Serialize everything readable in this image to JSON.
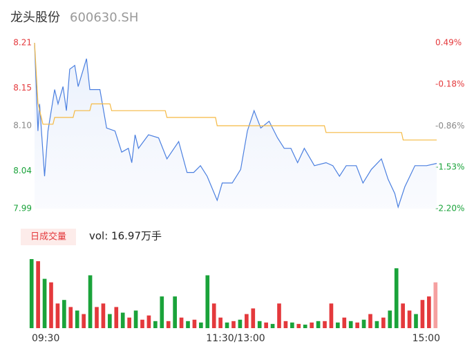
{
  "header": {
    "name": "龙头股份",
    "code": "600630.SH"
  },
  "chart_data": [
    {
      "type": "line",
      "xlim": [
        0,
        240
      ],
      "xticks": [
        {
          "value": 0,
          "label": "09:30"
        },
        {
          "value": 120,
          "label": "11:30/13:00"
        },
        {
          "value": 240,
          "label": "15:00"
        }
      ],
      "ylim": [
        7.99,
        8.21
      ],
      "yticks": [
        8.21,
        8.15,
        {
          "value": 8.1,
          "label": "8.10"
        },
        8.04,
        7.99
      ],
      "ytick_colors": [
        "#e4393c",
        "#e4393c",
        "#888888",
        "#1aa33a",
        "#1aa33a"
      ],
      "y2lim": [
        -2.2,
        0.49
      ],
      "y2ticks": [
        {
          "value": 0.49,
          "label": "0.49%"
        },
        {
          "value": -0.18,
          "label": "-0.18%"
        },
        {
          "value": -0.86,
          "label": "-0.86%"
        },
        {
          "value": -1.53,
          "label": "-1.53%"
        },
        {
          "value": -2.2,
          "label": "-2.20%"
        }
      ],
      "series": [
        {
          "color": "#4a7fe0",
          "x": [
            0,
            2,
            3,
            6,
            8,
            12,
            14,
            17,
            19,
            21,
            24,
            26,
            31,
            33,
            39,
            43,
            48,
            52,
            56,
            58,
            60,
            62,
            68,
            74,
            79,
            86,
            91,
            95,
            99,
            103,
            109,
            112,
            118,
            123,
            127,
            131,
            135,
            140,
            145,
            149,
            153,
            157,
            161,
            167,
            174,
            178,
            182,
            186,
            192,
            196,
            201,
            207,
            211,
            215,
            217,
            221,
            227,
            234,
            240
          ],
          "values": [
            8.21,
            8.093,
            8.129,
            8.033,
            8.093,
            8.148,
            8.129,
            8.152,
            8.12,
            8.175,
            8.18,
            8.152,
            8.189,
            8.148,
            8.148,
            8.097,
            8.093,
            8.065,
            8.07,
            8.051,
            8.088,
            8.07,
            8.088,
            8.084,
            8.056,
            8.079,
            8.038,
            8.038,
            8.047,
            8.033,
            8.001,
            8.024,
            8.024,
            8.042,
            8.093,
            8.12,
            8.097,
            8.106,
            8.084,
            8.07,
            8.07,
            8.051,
            8.07,
            8.047,
            8.051,
            8.047,
            8.033,
            8.047,
            8.047,
            8.024,
            8.042,
            8.056,
            8.029,
            8.01,
            7.992,
            8.019,
            8.047,
            8.047,
            8.05
          ]
        },
        {
          "color": "#f5b942",
          "x": [
            0,
            2,
            5,
            11,
            12,
            23,
            24,
            33,
            34,
            45,
            46,
            78,
            79,
            108,
            109,
            173,
            174,
            219,
            220,
            240
          ],
          "values": [
            8.21,
            8.13,
            8.102,
            8.102,
            8.111,
            8.111,
            8.12,
            8.12,
            8.129,
            8.129,
            8.12,
            8.12,
            8.111,
            8.111,
            8.1,
            8.1,
            8.091,
            8.091,
            8.081,
            8.081
          ]
        }
      ]
    },
    {
      "type": "bar",
      "legend": "日成交量",
      "note": "vol: 16.97万手",
      "values": [
        98,
        95,
        70,
        65,
        35,
        40,
        30,
        25,
        20,
        75,
        30,
        35,
        20,
        30,
        22,
        15,
        25,
        12,
        18,
        10,
        45,
        10,
        45,
        15,
        10,
        12,
        8,
        75,
        35,
        15,
        8,
        10,
        12,
        20,
        28,
        10,
        8,
        6,
        35,
        10,
        8,
        6,
        5,
        8,
        10,
        10,
        35,
        8,
        15,
        10,
        8,
        12,
        20,
        10,
        15,
        25,
        85,
        35,
        25,
        20,
        40,
        45,
        65
      ],
      "colors": [
        "#1aa33a",
        "#e4393c",
        "#1aa33a",
        "#e4393c",
        "#e4393c",
        "#1aa33a",
        "#e4393c",
        "#1aa33a",
        "#e4393c",
        "#1aa33a",
        "#e4393c",
        "#e4393c",
        "#1aa33a",
        "#e4393c",
        "#1aa33a",
        "#e4393c",
        "#1aa33a",
        "#e4393c",
        "#e4393c",
        "#1aa33a",
        "#1aa33a",
        "#e4393c",
        "#1aa33a",
        "#e4393c",
        "#1aa33a",
        "#e4393c",
        "#1aa33a",
        "#1aa33a",
        "#e4393c",
        "#e4393c",
        "#1aa33a",
        "#e4393c",
        "#1aa33a",
        "#e4393c",
        "#e4393c",
        "#1aa33a",
        "#e4393c",
        "#1aa33a",
        "#e4393c",
        "#e4393c",
        "#1aa33a",
        "#e4393c",
        "#1aa33a",
        "#e4393c",
        "#1aa33a",
        "#e4393c",
        "#e4393c",
        "#1aa33a",
        "#e4393c",
        "#1aa33a",
        "#e4393c",
        "#1aa33a",
        "#e4393c",
        "#1aa33a",
        "#e4393c",
        "#1aa33a",
        "#1aa33a",
        "#e4393c",
        "#e4393c",
        "#1aa33a",
        "#e4393c",
        "#e4393c",
        "#f5a0a0"
      ],
      "ylim": [
        0,
        100
      ]
    }
  ]
}
